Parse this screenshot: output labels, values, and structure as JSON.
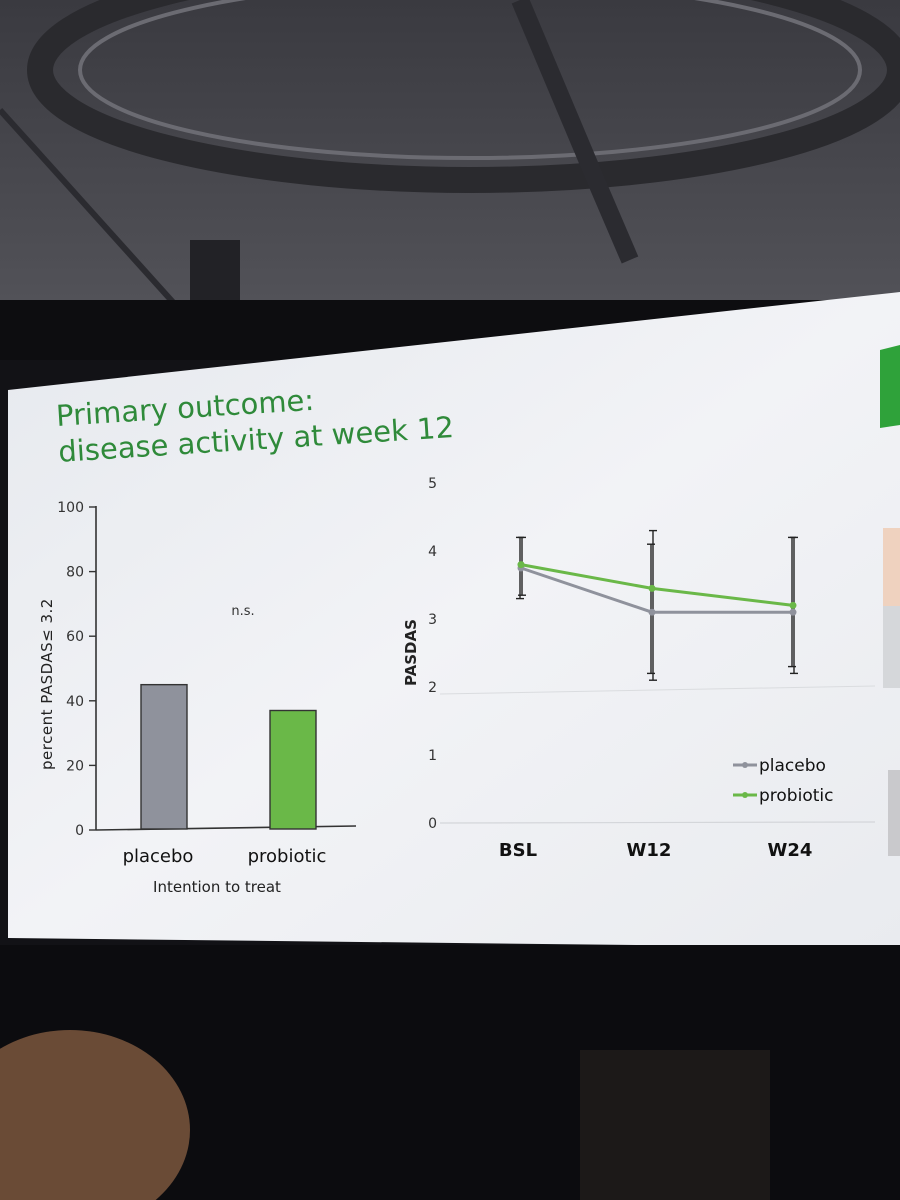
{
  "slide": {
    "title_line1": "Primary outcome:",
    "title_line2": "disease activity at week 12"
  },
  "colors": {
    "placebo": "#8f929c",
    "probiotic": "#6ab848",
    "title": "#2f8a3a",
    "axis": "#333333",
    "screen": "#eef0f3"
  },
  "chart_data": [
    {
      "type": "bar",
      "categories": [
        "placebo",
        "probiotic"
      ],
      "values": [
        45,
        37
      ],
      "ylabel": "percent PASDAS≤ 3.2",
      "xlabel": "Intention to treat",
      "ylim": [
        0,
        100
      ],
      "yticks": [
        0,
        20,
        40,
        60,
        80,
        100
      ],
      "annotation": "n.s.",
      "grid": false
    },
    {
      "type": "line",
      "categories": [
        "BSL",
        "W12",
        "W24"
      ],
      "ylabel": "PASDAS",
      "ylim": [
        0,
        5
      ],
      "yticks": [
        0,
        1,
        2,
        3,
        4,
        5
      ],
      "grid": false,
      "legend_position": "bottom-right",
      "series": [
        {
          "name": "placebo",
          "values": [
            3.75,
            3.1,
            3.1
          ],
          "err_low": [
            3.3,
            2.2,
            2.3
          ],
          "err_high": [
            4.2,
            4.1,
            4.2
          ]
        },
        {
          "name": "probiotic",
          "values": [
            3.8,
            3.45,
            3.2
          ],
          "err_low": [
            3.35,
            2.1,
            2.2
          ],
          "err_high": [
            4.2,
            4.3,
            4.2
          ]
        }
      ]
    }
  ]
}
